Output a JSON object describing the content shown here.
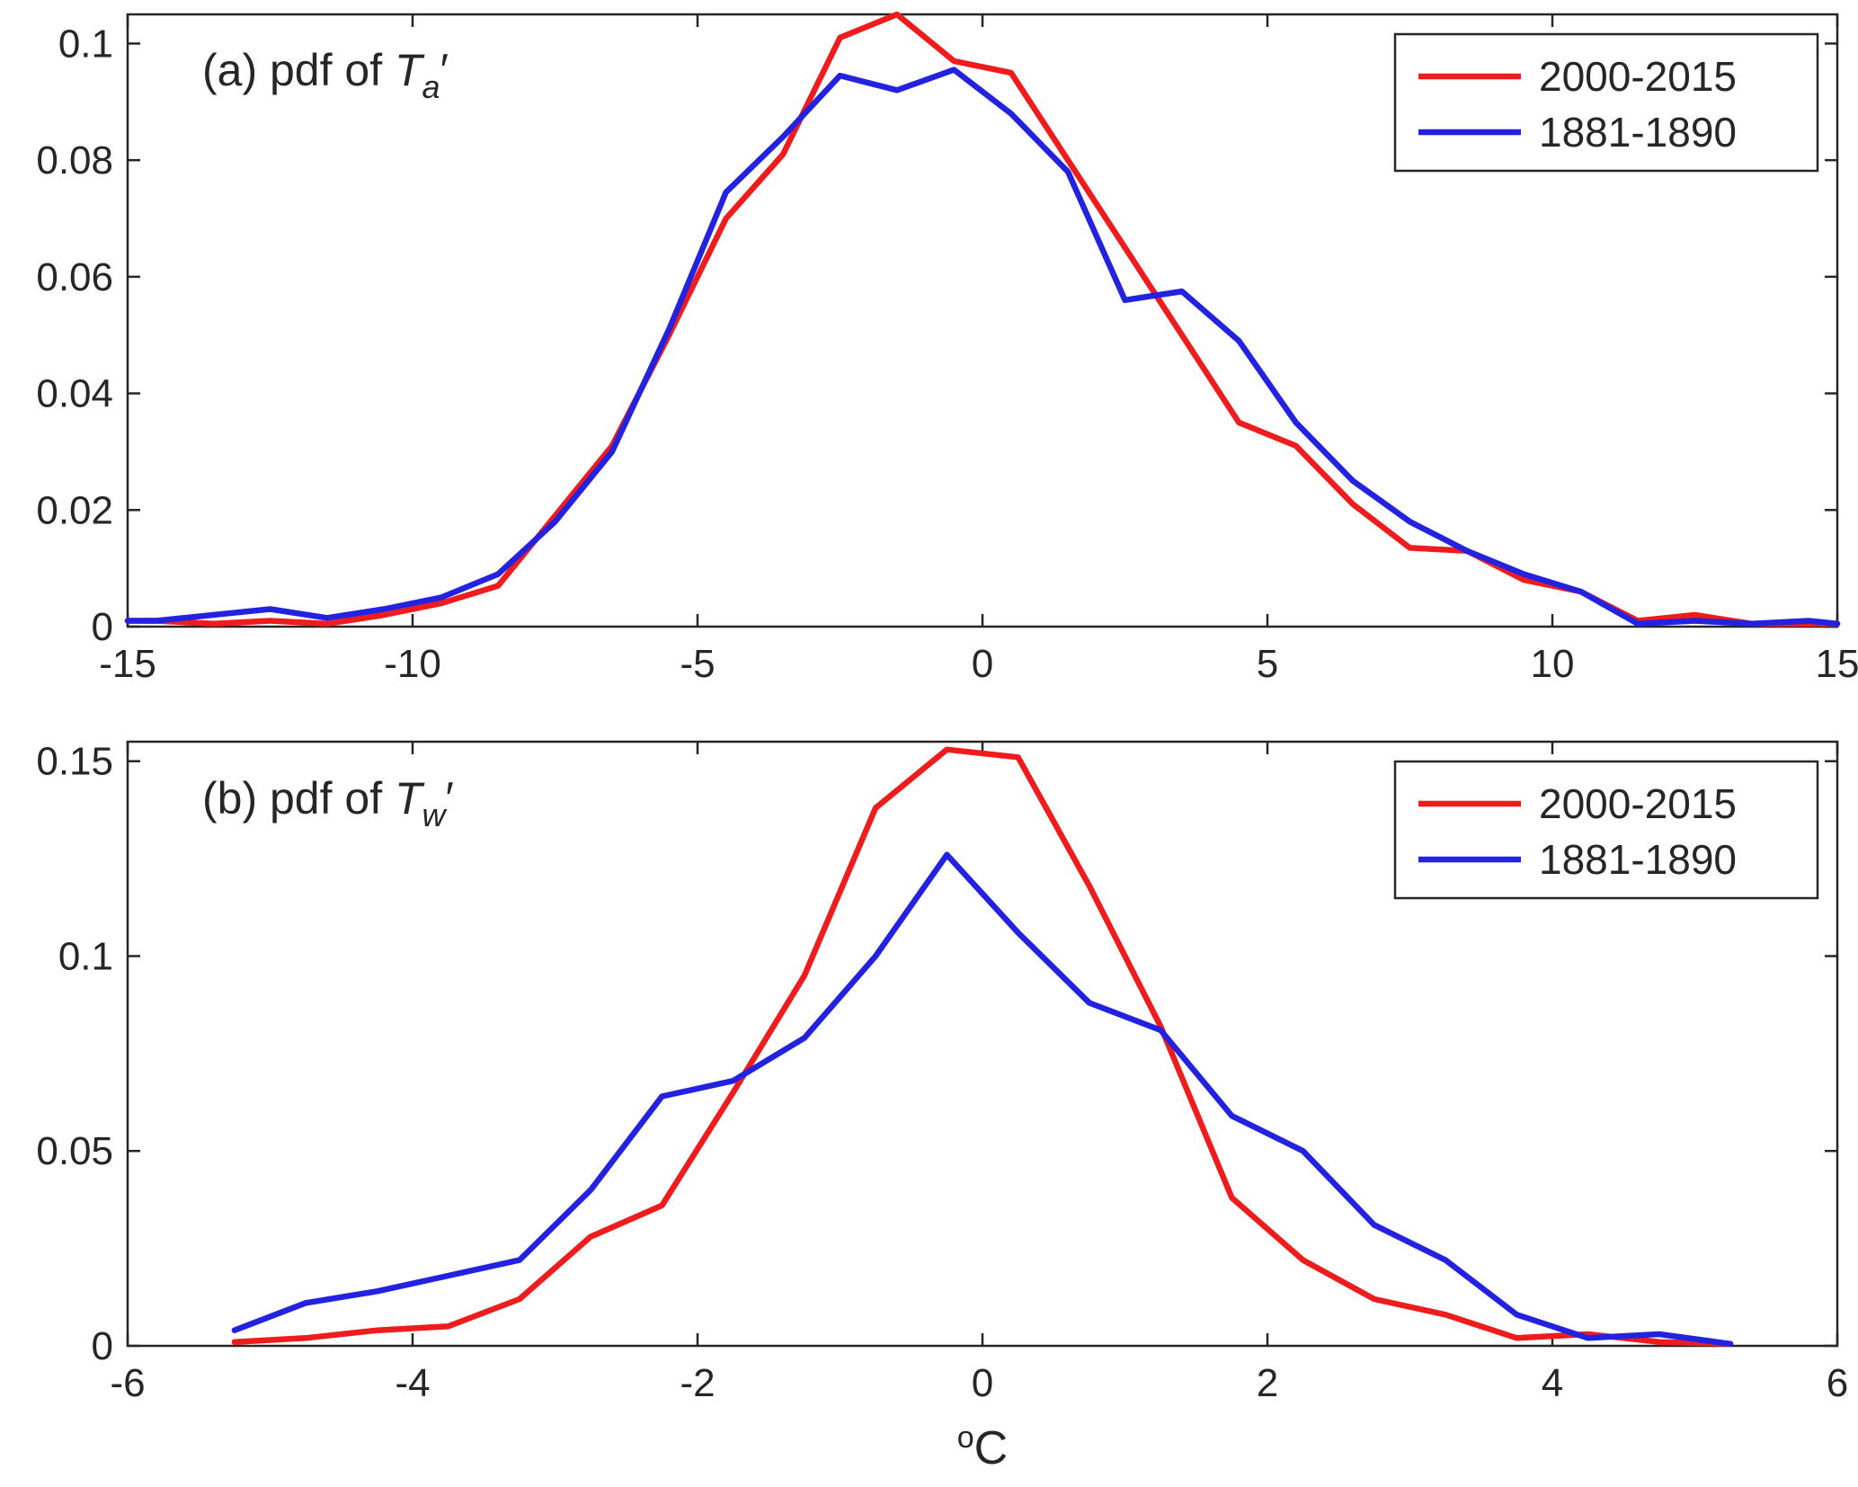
{
  "figure": {
    "background": "#ffffff"
  },
  "style": {
    "axis_color": "#262626",
    "text_color": "#262626",
    "red": "#ee1c1c",
    "blue": "#2222e0",
    "legend_background": "#ffffff"
  },
  "chart_data": [
    {
      "type": "line",
      "panel": "a",
      "title": {
        "prefix": "(a) pdf of",
        "variable": "T",
        "subscript": "a",
        "prime": "′"
      },
      "xlim": [
        -15,
        15
      ],
      "ylim": [
        0,
        0.105
      ],
      "x_ticks": [
        -15,
        -10,
        -5,
        0,
        5,
        10,
        15
      ],
      "x_tick_labels": [
        "-15",
        "-10",
        "-5",
        "0",
        "5",
        "10",
        "15"
      ],
      "y_ticks": [
        0,
        0.02,
        0.04,
        0.06,
        0.08,
        0.1
      ],
      "y_tick_labels": [
        "0",
        "0.02",
        "0.04",
        "0.06",
        "0.08",
        "0.1"
      ],
      "grid": false,
      "legend_position": "top-right",
      "x": [
        -15,
        -14.5,
        -13.5,
        -12.5,
        -11.5,
        -10.5,
        -9.5,
        -8.5,
        -7.5,
        -6.5,
        -5.5,
        -4.5,
        -3.5,
        -2.5,
        -1.5,
        -0.5,
        0.5,
        1.5,
        2.5,
        3.5,
        4.5,
        5.5,
        6.5,
        7.5,
        8.5,
        9.5,
        10.5,
        11.5,
        12.5,
        13.5,
        14.5,
        15
      ],
      "series": [
        {
          "name": "2000-2015",
          "color": "#ee1c1c",
          "values": [
            0.001,
            0.001,
            0.0005,
            0.001,
            0.0005,
            0.002,
            0.004,
            0.007,
            0.019,
            0.031,
            0.05,
            0.07,
            0.081,
            0.101,
            0.105,
            0.097,
            0.095,
            0.08,
            0.065,
            0.05,
            0.035,
            0.031,
            0.021,
            0.0135,
            0.013,
            0.008,
            0.006,
            0.001,
            0.002,
            0.0005,
            0.0005,
            0.0005
          ]
        },
        {
          "name": "1881-1890",
          "color": "#2222e0",
          "values": [
            0.001,
            0.001,
            0.002,
            0.003,
            0.0015,
            0.003,
            0.005,
            0.009,
            0.018,
            0.03,
            0.051,
            0.0745,
            0.084,
            0.0945,
            0.092,
            0.0955,
            0.088,
            0.078,
            0.056,
            0.0575,
            0.049,
            0.035,
            0.025,
            0.018,
            0.013,
            0.009,
            0.006,
            0.0005,
            0.001,
            0.0005,
            0.001,
            0.0005
          ]
        }
      ]
    },
    {
      "type": "line",
      "panel": "b",
      "title": {
        "prefix": "(b) pdf of",
        "variable": "T",
        "subscript": "w",
        "prime": "′"
      },
      "xlabel": {
        "sup": "o",
        "text": "C"
      },
      "xlim": [
        -6,
        6
      ],
      "ylim": [
        0,
        0.155
      ],
      "x_ticks": [
        -6,
        -4,
        -2,
        0,
        2,
        4,
        6
      ],
      "x_tick_labels": [
        "-6",
        "-4",
        "-2",
        "0",
        "2",
        "4",
        "6"
      ],
      "y_ticks": [
        0,
        0.05,
        0.1,
        0.15
      ],
      "y_tick_labels": [
        "0",
        "0.05",
        "0.1",
        "0.15"
      ],
      "grid": false,
      "legend_position": "top-right",
      "x": [
        -5.25,
        -4.75,
        -4.25,
        -3.75,
        -3.25,
        -2.75,
        -2.25,
        -1.75,
        -1.25,
        -0.75,
        -0.25,
        0.25,
        0.75,
        1.25,
        1.75,
        2.25,
        2.75,
        3.25,
        3.75,
        4.25,
        4.75,
        5.25
      ],
      "series": [
        {
          "name": "2000-2015",
          "color": "#ee1c1c",
          "values": [
            0.001,
            0.002,
            0.004,
            0.005,
            0.012,
            0.028,
            0.036,
            0.065,
            0.095,
            0.138,
            0.153,
            0.151,
            0.118,
            0.082,
            0.038,
            0.022,
            0.012,
            0.008,
            0.002,
            0.003,
            0.001,
            0.0005
          ]
        },
        {
          "name": "1881-1890",
          "color": "#2222e0",
          "values": [
            0.004,
            0.011,
            0.014,
            0.018,
            0.022,
            0.04,
            0.064,
            0.068,
            0.079,
            0.1,
            0.126,
            0.106,
            0.088,
            0.081,
            0.059,
            0.05,
            0.031,
            0.022,
            0.008,
            0.002,
            0.003,
            0.0005
          ]
        }
      ]
    }
  ]
}
